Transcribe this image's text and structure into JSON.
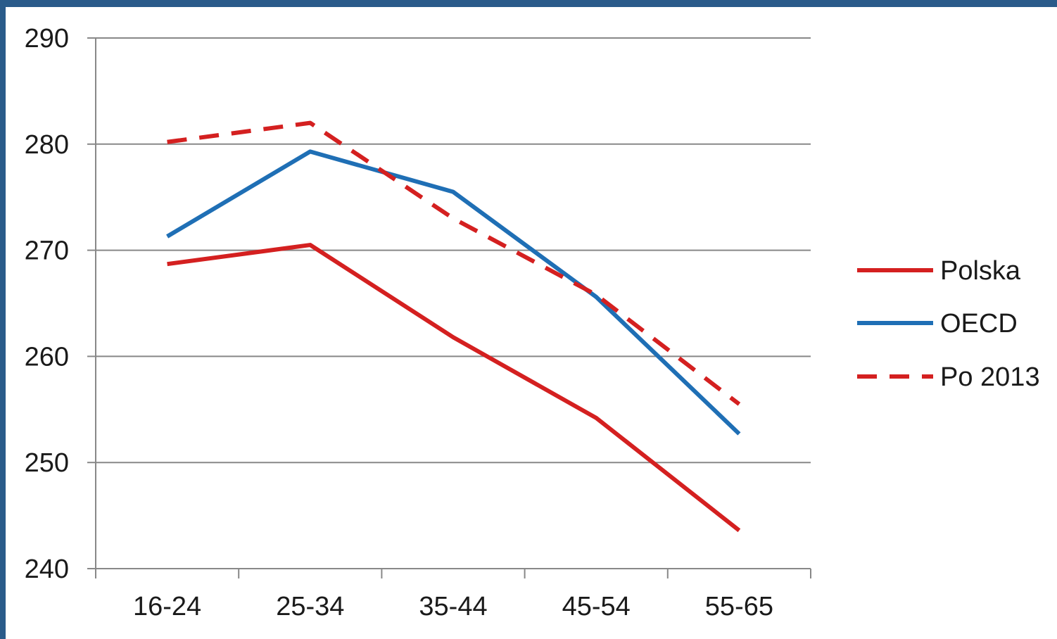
{
  "chart_data": {
    "type": "line",
    "categories": [
      "16-24",
      "25-34",
      "35-44",
      "45-54",
      "55-65"
    ],
    "ylim": [
      240,
      290
    ],
    "yticks": [
      240,
      250,
      260,
      270,
      280,
      290
    ],
    "grid": true,
    "legend_position": "right",
    "series": [
      {
        "name": "Polska",
        "values": [
          268.7,
          270.5,
          261.8,
          254.2,
          243.6
        ],
        "color": "#d42020",
        "dash": "solid"
      },
      {
        "name": "OECD",
        "values": [
          271.3,
          279.3,
          275.5,
          265.6,
          252.7
        ],
        "color": "#1f6fb5",
        "dash": "solid"
      },
      {
        "name": "Po 2013",
        "values": [
          280.2,
          282.0,
          273.0,
          265.8,
          255.5
        ],
        "color": "#d42020",
        "dash": "dashed"
      }
    ]
  },
  "colors": {
    "frame": "#2a5b8a",
    "grid": "#888888",
    "axis": "#888888"
  }
}
